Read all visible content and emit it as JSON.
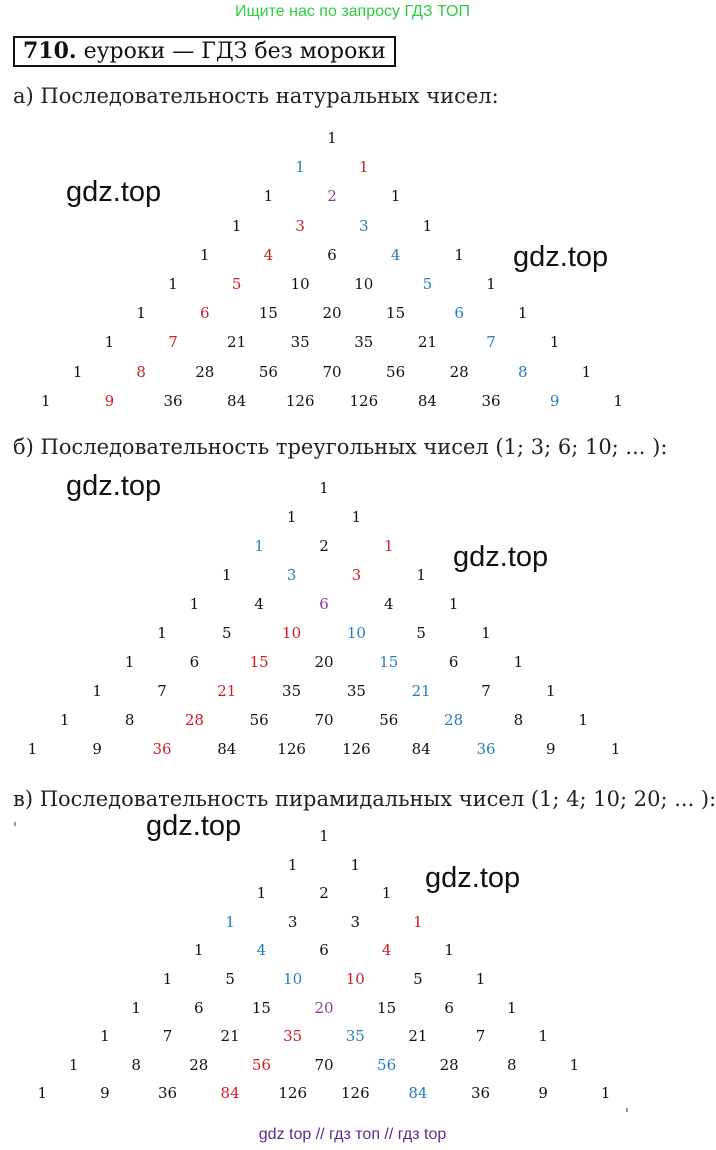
{
  "banner": "Ищите нас по запросу ГДЗ ТОП",
  "title": {
    "number": "710.",
    "text": " еуроки  —  ГДЗ без мороки"
  },
  "headings": {
    "a": "а) Последовательность натуральных чисел:",
    "b": "б) Последовательность треугольных чисел (1;  3;  6;  10; ... ):",
    "c": "в) Последовательность пирамидальных чисел (1;  4;  10;  20; ... ):"
  },
  "watermark": "gdz.top",
  "footer": "gdz top  //  гдз топ  //  гдз top",
  "colors": {
    "red": "#d01c24",
    "blue": "#1f7fc0",
    "purple": "#8e3a96",
    "black": "#111111",
    "banner_green": "#2ecc40"
  },
  "triangles": [
    {
      "rows": [
        [
          [
            "1",
            "k"
          ]
        ],
        [
          [
            "1",
            "b"
          ],
          [
            "1",
            "r"
          ]
        ],
        [
          [
            "1",
            "k"
          ],
          [
            "2",
            "p"
          ],
          [
            "1",
            "k"
          ]
        ],
        [
          [
            "1",
            "k"
          ],
          [
            "3",
            "r"
          ],
          [
            "3",
            "b"
          ],
          [
            "1",
            "k"
          ]
        ],
        [
          [
            "1",
            "k"
          ],
          [
            "4",
            "r"
          ],
          [
            "6",
            "k"
          ],
          [
            "4",
            "b"
          ],
          [
            "1",
            "k"
          ]
        ],
        [
          [
            "1",
            "k"
          ],
          [
            "5",
            "r"
          ],
          [
            "10",
            "k"
          ],
          [
            "10",
            "k"
          ],
          [
            "5",
            "b"
          ],
          [
            "1",
            "k"
          ]
        ],
        [
          [
            "1",
            "k"
          ],
          [
            "6",
            "r"
          ],
          [
            "15",
            "k"
          ],
          [
            "20",
            "k"
          ],
          [
            "15",
            "k"
          ],
          [
            "6",
            "b"
          ],
          [
            "1",
            "k"
          ]
        ],
        [
          [
            "1",
            "k"
          ],
          [
            "7",
            "r"
          ],
          [
            "21",
            "k"
          ],
          [
            "35",
            "k"
          ],
          [
            "35",
            "k"
          ],
          [
            "21",
            "k"
          ],
          [
            "7",
            "b"
          ],
          [
            "1",
            "k"
          ]
        ],
        [
          [
            "1",
            "k"
          ],
          [
            "8",
            "r"
          ],
          [
            "28",
            "k"
          ],
          [
            "56",
            "k"
          ],
          [
            "70",
            "k"
          ],
          [
            "56",
            "k"
          ],
          [
            "28",
            "k"
          ],
          [
            "8",
            "b"
          ],
          [
            "1",
            "k"
          ]
        ],
        [
          [
            "1",
            "k"
          ],
          [
            "9",
            "r"
          ],
          [
            "36",
            "k"
          ],
          [
            "84",
            "k"
          ],
          [
            "126",
            "k"
          ],
          [
            "126",
            "k"
          ],
          [
            "84",
            "k"
          ],
          [
            "36",
            "k"
          ],
          [
            "9",
            "b"
          ],
          [
            "1",
            "k"
          ]
        ]
      ]
    },
    {
      "rows": [
        [
          [
            "1",
            "k"
          ]
        ],
        [
          [
            "1",
            "k"
          ],
          [
            "1",
            "k"
          ]
        ],
        [
          [
            "1",
            "b"
          ],
          [
            "2",
            "k"
          ],
          [
            "1",
            "r"
          ]
        ],
        [
          [
            "1",
            "k"
          ],
          [
            "3",
            "b"
          ],
          [
            "3",
            "r"
          ],
          [
            "1",
            "k"
          ]
        ],
        [
          [
            "1",
            "k"
          ],
          [
            "4",
            "k"
          ],
          [
            "6",
            "p"
          ],
          [
            "4",
            "k"
          ],
          [
            "1",
            "k"
          ]
        ],
        [
          [
            "1",
            "k"
          ],
          [
            "5",
            "k"
          ],
          [
            "10",
            "r"
          ],
          [
            "10",
            "b"
          ],
          [
            "5",
            "k"
          ],
          [
            "1",
            "k"
          ]
        ],
        [
          [
            "1",
            "k"
          ],
          [
            "6",
            "k"
          ],
          [
            "15",
            "r"
          ],
          [
            "20",
            "k"
          ],
          [
            "15",
            "b"
          ],
          [
            "6",
            "k"
          ],
          [
            "1",
            "k"
          ]
        ],
        [
          [
            "1",
            "k"
          ],
          [
            "7",
            "k"
          ],
          [
            "21",
            "r"
          ],
          [
            "35",
            "k"
          ],
          [
            "35",
            "k"
          ],
          [
            "21",
            "b"
          ],
          [
            "7",
            "k"
          ],
          [
            "1",
            "k"
          ]
        ],
        [
          [
            "1",
            "k"
          ],
          [
            "8",
            "k"
          ],
          [
            "28",
            "r"
          ],
          [
            "56",
            "k"
          ],
          [
            "70",
            "k"
          ],
          [
            "56",
            "k"
          ],
          [
            "28",
            "b"
          ],
          [
            "8",
            "k"
          ],
          [
            "1",
            "k"
          ]
        ],
        [
          [
            "1",
            "k"
          ],
          [
            "9",
            "k"
          ],
          [
            "36",
            "r"
          ],
          [
            "84",
            "k"
          ],
          [
            "126",
            "k"
          ],
          [
            "126",
            "k"
          ],
          [
            "84",
            "k"
          ],
          [
            "36",
            "b"
          ],
          [
            "9",
            "k"
          ],
          [
            "1",
            "k"
          ]
        ]
      ]
    },
    {
      "rows": [
        [
          [
            "1",
            "k"
          ]
        ],
        [
          [
            "1",
            "k"
          ],
          [
            "1",
            "k"
          ]
        ],
        [
          [
            "1",
            "k"
          ],
          [
            "2",
            "k"
          ],
          [
            "1",
            "k"
          ]
        ],
        [
          [
            "1",
            "b"
          ],
          [
            "3",
            "k"
          ],
          [
            "3",
            "k"
          ],
          [
            "1",
            "r"
          ]
        ],
        [
          [
            "1",
            "k"
          ],
          [
            "4",
            "b"
          ],
          [
            "6",
            "k"
          ],
          [
            "4",
            "r"
          ],
          [
            "1",
            "k"
          ]
        ],
        [
          [
            "1",
            "k"
          ],
          [
            "5",
            "k"
          ],
          [
            "10",
            "b"
          ],
          [
            "10",
            "r"
          ],
          [
            "5",
            "k"
          ],
          [
            "1",
            "k"
          ]
        ],
        [
          [
            "1",
            "k"
          ],
          [
            "6",
            "k"
          ],
          [
            "15",
            "k"
          ],
          [
            "20",
            "p"
          ],
          [
            "15",
            "k"
          ],
          [
            "6",
            "k"
          ],
          [
            "1",
            "k"
          ]
        ],
        [
          [
            "1",
            "k"
          ],
          [
            "7",
            "k"
          ],
          [
            "21",
            "k"
          ],
          [
            "35",
            "r"
          ],
          [
            "35",
            "b"
          ],
          [
            "21",
            "k"
          ],
          [
            "7",
            "k"
          ],
          [
            "1",
            "k"
          ]
        ],
        [
          [
            "1",
            "k"
          ],
          [
            "8",
            "k"
          ],
          [
            "28",
            "k"
          ],
          [
            "56",
            "r"
          ],
          [
            "70",
            "k"
          ],
          [
            "56",
            "b"
          ],
          [
            "28",
            "k"
          ],
          [
            "8",
            "k"
          ],
          [
            "1",
            "k"
          ]
        ],
        [
          [
            "1",
            "k"
          ],
          [
            "9",
            "k"
          ],
          [
            "36",
            "k"
          ],
          [
            "84",
            "r"
          ],
          [
            "126",
            "k"
          ],
          [
            "126",
            "k"
          ],
          [
            "84",
            "b"
          ],
          [
            "36",
            "k"
          ],
          [
            "9",
            "k"
          ],
          [
            "1",
            "k"
          ]
        ]
      ]
    }
  ]
}
